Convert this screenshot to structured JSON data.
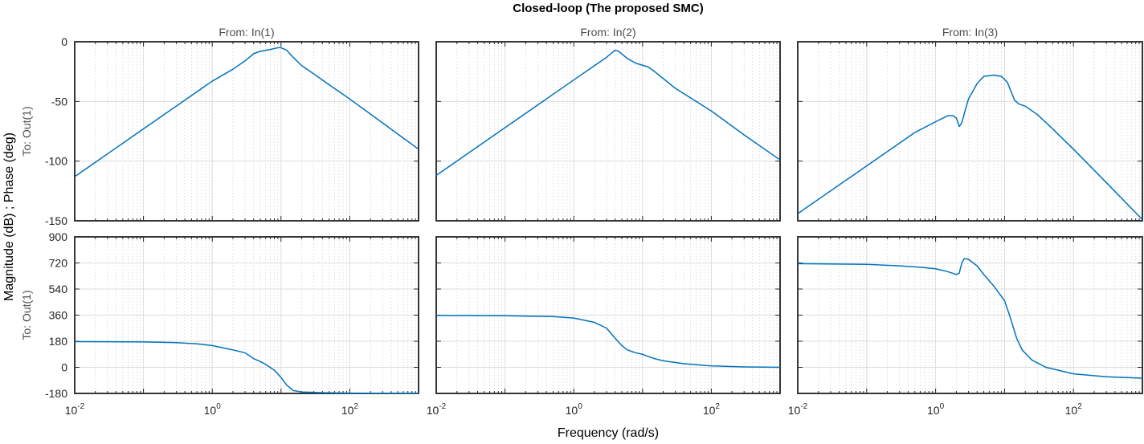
{
  "colors": {
    "line": "#0072BD"
  },
  "chart_data": {
    "type": "line",
    "title": "Closed-loop (The proposed SMC)",
    "xlabel": "Frequency  (rad/s)",
    "ylabel": "Magnitude (dB) ; Phase (deg)",
    "xscale": "log",
    "xlim": [
      0.01,
      1000
    ],
    "x_ticks": [
      0.01,
      1,
      100
    ],
    "x_tick_labels": [
      {
        "base": "10",
        "exp": "-2"
      },
      {
        "base": "10",
        "exp": "0"
      },
      {
        "base": "10",
        "exp": "2"
      }
    ],
    "grid": true,
    "columns": [
      "From: In(1)",
      "From: In(2)",
      "From: In(3)"
    ],
    "rows": [
      {
        "label": "To: Out(1)",
        "quantity": "Magnitude (dB)",
        "ylim": [
          -150,
          0
        ],
        "y_ticks": [
          0,
          -50,
          -100,
          -150
        ],
        "y_tick_labels": [
          "0",
          "-50",
          "-100",
          "-150"
        ],
        "series": [
          {
            "column": 1,
            "points": [
              [
                0.01,
                -113
              ],
              [
                0.1,
                -73
              ],
              [
                1,
                -33
              ],
              [
                2,
                -23
              ],
              [
                3,
                -16
              ],
              [
                4,
                -10
              ],
              [
                5,
                -8
              ],
              [
                7,
                -6.5
              ],
              [
                9,
                -5
              ],
              [
                10,
                -5
              ],
              [
                12,
                -7
              ],
              [
                15,
                -13
              ],
              [
                20,
                -20
              ],
              [
                30,
                -27
              ],
              [
                50,
                -36
              ],
              [
                100,
                -48
              ],
              [
                300,
                -68
              ],
              [
                1000,
                -90
              ]
            ]
          },
          {
            "column": 2,
            "points": [
              [
                0.01,
                -112
              ],
              [
                0.1,
                -72
              ],
              [
                1,
                -32
              ],
              [
                2,
                -20
              ],
              [
                3,
                -13
              ],
              [
                4,
                -7
              ],
              [
                4.5,
                -8
              ],
              [
                6,
                -14
              ],
              [
                8,
                -18
              ],
              [
                12,
                -21
              ],
              [
                15,
                -25
              ],
              [
                30,
                -39
              ],
              [
                100,
                -58
              ],
              [
                300,
                -78
              ],
              [
                1000,
                -99
              ]
            ]
          },
          {
            "column": 3,
            "points": [
              [
                0.01,
                -144
              ],
              [
                0.1,
                -104
              ],
              [
                0.5,
                -76
              ],
              [
                1,
                -67
              ],
              [
                1.5,
                -62
              ],
              [
                1.8,
                -62
              ],
              [
                2,
                -64
              ],
              [
                2.2,
                -71
              ],
              [
                2.4,
                -68
              ],
              [
                2.7,
                -57
              ],
              [
                3,
                -48
              ],
              [
                4,
                -35
              ],
              [
                5,
                -29
              ],
              [
                7,
                -28
              ],
              [
                9,
                -29
              ],
              [
                11,
                -34
              ],
              [
                14,
                -49
              ],
              [
                16,
                -52
              ],
              [
                20,
                -54
              ],
              [
                30,
                -61
              ],
              [
                50,
                -73
              ],
              [
                100,
                -90
              ],
              [
                300,
                -118
              ],
              [
                1000,
                -149
              ]
            ]
          }
        ]
      },
      {
        "label": "To: Out(1)",
        "quantity": "Phase (deg)",
        "ylim": [
          -180,
          900
        ],
        "y_ticks": [
          900,
          720,
          540,
          360,
          180,
          0,
          -180
        ],
        "y_tick_labels": [
          "900",
          "720",
          "540",
          "360",
          "180",
          "0",
          "-180"
        ],
        "series": [
          {
            "column": 1,
            "points": [
              [
                0.01,
                177
              ],
              [
                0.1,
                175
              ],
              [
                0.3,
                170
              ],
              [
                0.6,
                162
              ],
              [
                1,
                150
              ],
              [
                2,
                120
              ],
              [
                3,
                100
              ],
              [
                4,
                60
              ],
              [
                5,
                40
              ],
              [
                6,
                20
              ],
              [
                8,
                -20
              ],
              [
                10,
                -70
              ],
              [
                12,
                -120
              ],
              [
                15,
                -160
              ],
              [
                20,
                -170
              ],
              [
                40,
                -175
              ],
              [
                100,
                -178
              ],
              [
                1000,
                -180
              ]
            ]
          },
          {
            "column": 2,
            "points": [
              [
                0.01,
                358
              ],
              [
                0.1,
                356
              ],
              [
                0.5,
                350
              ],
              [
                1,
                340
              ],
              [
                2,
                310
              ],
              [
                3,
                270
              ],
              [
                4,
                200
              ],
              [
                5,
                150
              ],
              [
                6,
                120
              ],
              [
                8,
                100
              ],
              [
                10,
                90
              ],
              [
                12,
                75
              ],
              [
                15,
                60
              ],
              [
                20,
                45
              ],
              [
                40,
                25
              ],
              [
                100,
                10
              ],
              [
                300,
                3
              ],
              [
                1000,
                0
              ]
            ]
          },
          {
            "column": 3,
            "points": [
              [
                0.01,
                715
              ],
              [
                0.1,
                710
              ],
              [
                0.3,
                700
              ],
              [
                0.6,
                690
              ],
              [
                1,
                680
              ],
              [
                1.5,
                660
              ],
              [
                2,
                640
              ],
              [
                2.2,
                650
              ],
              [
                2.4,
                720
              ],
              [
                2.6,
                750
              ],
              [
                3,
                745
              ],
              [
                4,
                700
              ],
              [
                5,
                640
              ],
              [
                7,
                560
              ],
              [
                10,
                460
              ],
              [
                12,
                350
              ],
              [
                15,
                200
              ],
              [
                18,
                120
              ],
              [
                25,
                50
              ],
              [
                40,
                0
              ],
              [
                100,
                -45
              ],
              [
                300,
                -65
              ],
              [
                1000,
                -75
              ]
            ]
          }
        ]
      }
    ]
  }
}
